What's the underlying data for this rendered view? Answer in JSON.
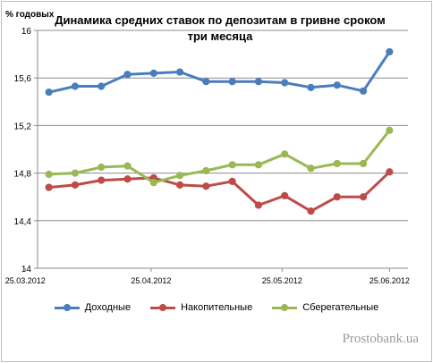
{
  "chart_data": {
    "type": "line",
    "title": "Динамика средних ставок по депозитам в гривне сроком три месяца",
    "ylabel": "% годовых",
    "ylim": [
      14,
      16
    ],
    "yticks": [
      "14",
      "14,4",
      "14,8",
      "15,2",
      "15,6",
      "16"
    ],
    "xtick_labels": [
      "25.03.2012",
      "25.04.2012",
      "25.05.2012",
      "25.06.2012"
    ],
    "grid": true,
    "legend_position": "bottom",
    "series": [
      {
        "name": "Доходные",
        "color": "#4a7ebb",
        "values": [
          15.48,
          15.53,
          15.53,
          15.63,
          15.64,
          15.65,
          15.57,
          15.57,
          15.57,
          15.56,
          15.52,
          15.54,
          15.49,
          15.82
        ]
      },
      {
        "name": "Накопительные",
        "color": "#be4b48",
        "values": [
          14.68,
          14.7,
          14.74,
          14.75,
          14.76,
          14.7,
          14.69,
          14.73,
          14.53,
          14.61,
          14.48,
          14.6,
          14.6,
          14.81
        ]
      },
      {
        "name": "Сберегательные",
        "color": "#98b954",
        "values": [
          14.79,
          14.8,
          14.85,
          14.86,
          14.72,
          14.78,
          14.82,
          14.87,
          14.87,
          14.96,
          14.84,
          14.88,
          14.88,
          15.16
        ]
      }
    ]
  },
  "watermark": "Prostobank.ua"
}
